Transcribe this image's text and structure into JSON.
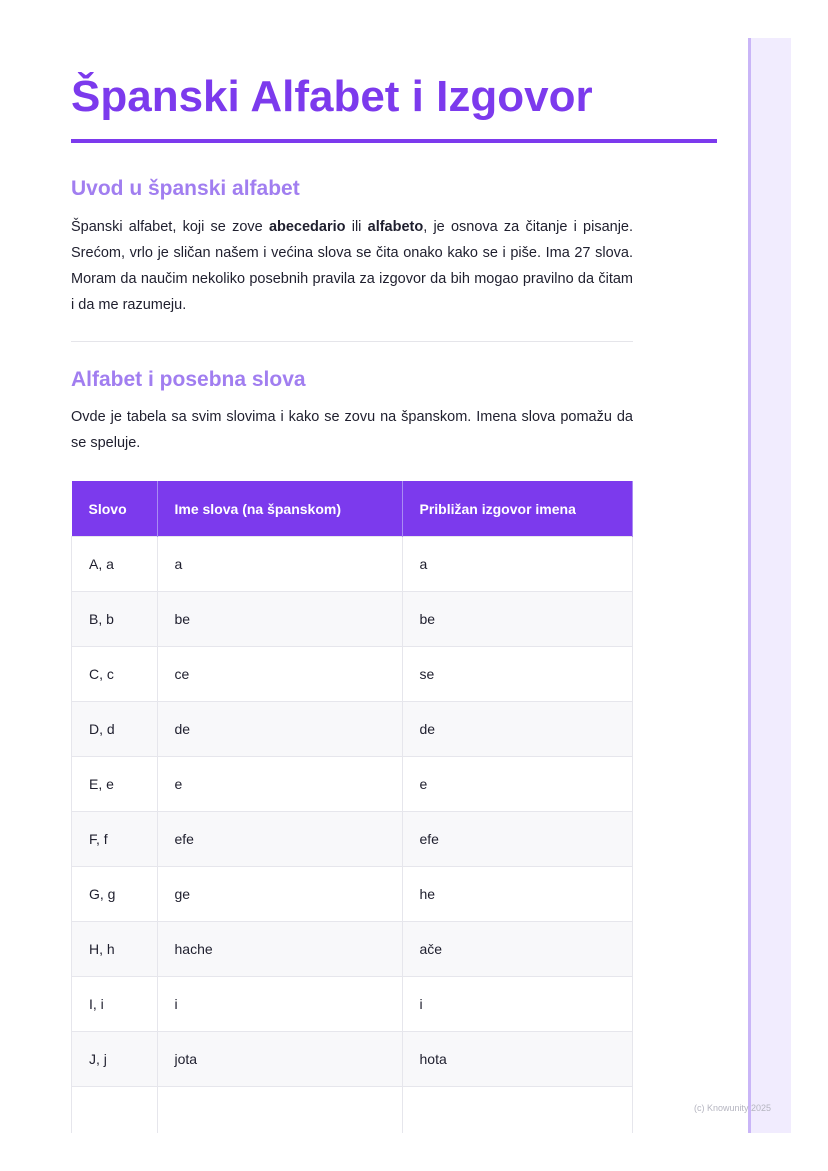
{
  "title": "Španski Alfabet i Izgovor",
  "section1": {
    "heading": "Uvod u španski alfabet",
    "p_a": "Španski alfabet, koji se zove ",
    "b1": "abecedario",
    "p_b": " ili ",
    "b2": "alfabeto",
    "p_c": ", je osnova za čitanje i pisanje. Srećom, vrlo je sličan našem i većina slova se čita onako kako se i piše. Ima 27 slova. Moram da naučim nekoliko posebnih pravila za izgovor da bih mogao pravilno da čitam i da me razumeju."
  },
  "section2": {
    "heading": "Alfabet i posebna slova",
    "text": "Ovde je tabela sa svim slovima i kako se zovu na španskom. Imena slova pomažu da se speluje."
  },
  "table": {
    "headers": [
      "Slovo",
      "Ime slova (na španskom)",
      "Približan izgovor imena"
    ],
    "rows": [
      [
        "A, a",
        "a",
        "a"
      ],
      [
        "B, b",
        "be",
        "be"
      ],
      [
        "C, c",
        "ce",
        "se"
      ],
      [
        "D, d",
        "de",
        "de"
      ],
      [
        "E, e",
        "e",
        "e"
      ],
      [
        "F, f",
        "efe",
        "efe"
      ],
      [
        "G, g",
        "ge",
        "he"
      ],
      [
        "H, h",
        "hache",
        "ače"
      ],
      [
        "I, i",
        "i",
        "i"
      ],
      [
        "J, j",
        "jota",
        "hota"
      ],
      [
        "",
        "",
        ""
      ]
    ]
  },
  "footer": "(c) Knowunity 2025"
}
